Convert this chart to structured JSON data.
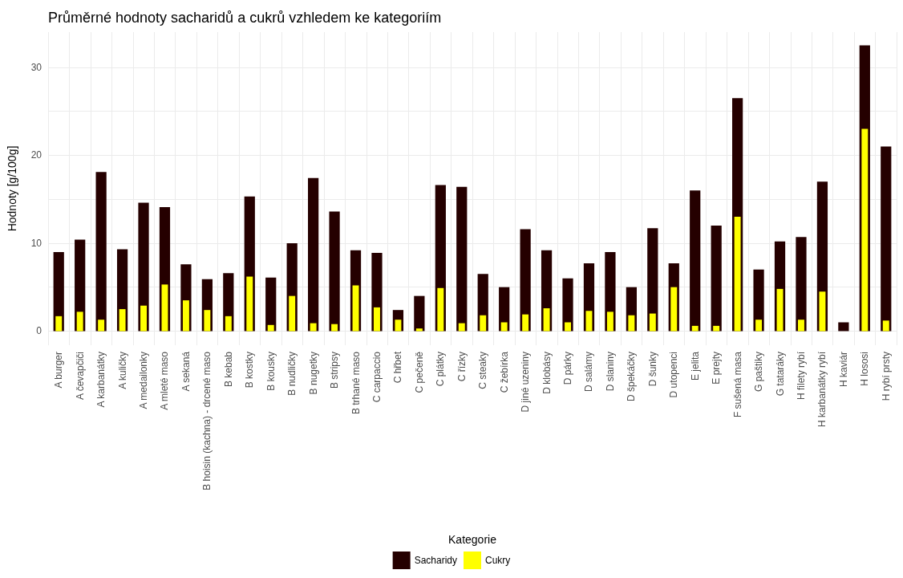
{
  "chart_data": {
    "type": "bar",
    "title": "Průměrné hodnoty sacharidů a cukrů vzhledem ke kategoriím",
    "xlabel": "Kategorie",
    "ylabel": "Hodnoty [g/100g]",
    "categories": [
      "A burger",
      "A čevapčiči",
      "A karbanátky",
      "A kuličky",
      "A medailonky",
      "A mleté maso",
      "A sekaná",
      "B hoisin (kachna) - drcené maso",
      "B kebab",
      "B kostky",
      "B kousky",
      "B nudličky",
      "B nugetky",
      "B stripsy",
      "B trhané maso",
      "C carpaccio",
      "C hřbet",
      "C pečeně",
      "C plátky",
      "C řízky",
      "C steaky",
      "C žebírka",
      "D jiné uzeniny",
      "D klobásy",
      "D párky",
      "D salámy",
      "D slaniny",
      "D špekáčky",
      "D šunky",
      "D utopenci",
      "E jelita",
      "E prejty",
      "F sušená masa",
      "G paštiky",
      "G tataráky",
      "H filety rybí",
      "H karbanátky rybí",
      "H kaviár",
      "H lososi",
      "H rybí prsty"
    ],
    "series": [
      {
        "name": "Sacharidy",
        "color": "#250000",
        "values": [
          9.0,
          10.4,
          18.1,
          9.3,
          14.6,
          14.1,
          7.6,
          5.9,
          6.6,
          15.3,
          6.1,
          10.0,
          17.4,
          13.6,
          9.2,
          8.9,
          2.4,
          4.0,
          16.6,
          16.4,
          6.5,
          5.0,
          11.6,
          9.2,
          6.0,
          7.7,
          9.0,
          5.0,
          11.7,
          7.7,
          16.0,
          12.0,
          26.5,
          7.0,
          10.2,
          10.7,
          17.0,
          1.0,
          32.5,
          21.0
        ]
      },
      {
        "name": "Cukry",
        "color": "#ffff00",
        "values": [
          1.7,
          2.2,
          1.3,
          2.5,
          2.9,
          5.3,
          3.5,
          2.4,
          1.7,
          6.2,
          0.7,
          4.0,
          0.9,
          0.8,
          5.2,
          2.7,
          1.3,
          0.3,
          4.9,
          0.9,
          1.8,
          1.0,
          1.9,
          2.6,
          1.0,
          2.3,
          2.2,
          1.8,
          2.0,
          5.0,
          0.6,
          0.6,
          13.0,
          1.3,
          4.8,
          1.3,
          4.5,
          null,
          23.0,
          1.2
        ]
      }
    ],
    "ylim": [
      -1.6,
      34
    ],
    "yticks": [
      0,
      {
        "value": 5,
        "label": null
      },
      10,
      {
        "value": 15,
        "label": null
      },
      20,
      {
        "value": 25,
        "label": null
      },
      30
    ],
    "grid": true,
    "legend": "bottom"
  }
}
